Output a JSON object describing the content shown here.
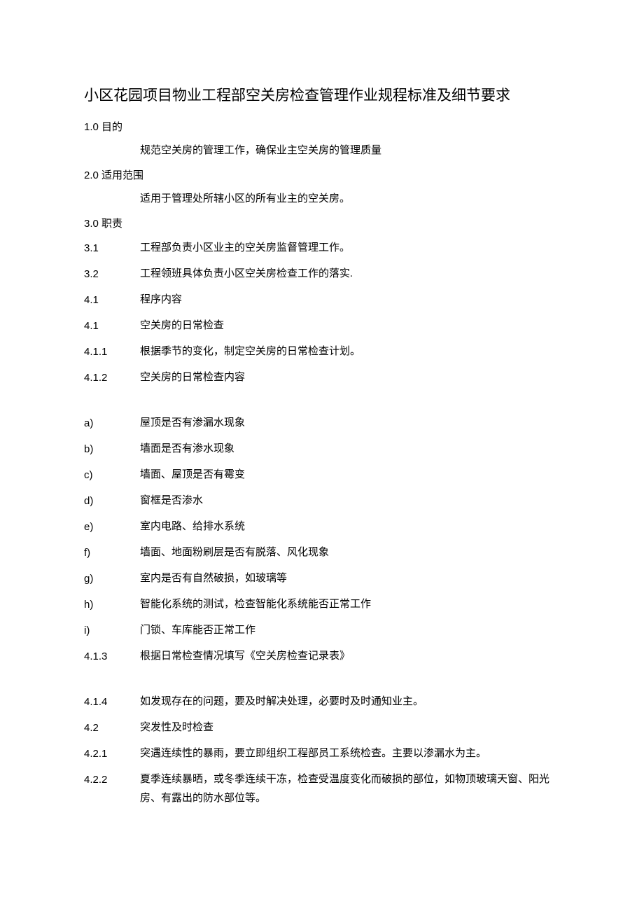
{
  "title": "小区花园项目物业工程部空关房检查管理作业规程标准及细节要求",
  "sections": {
    "s1": {
      "num": "1.0",
      "label": "目的"
    },
    "s2": {
      "num": "2.0",
      "label": "适用范围"
    },
    "s3": {
      "num": "3.0",
      "label": "职责"
    }
  },
  "line1": "规范空关房的管理工作，确保业主空关房的管理质量",
  "line2": "适用于管理处所辖小区的所有业主的空关房。",
  "items": {
    "i31": {
      "num": "3.1",
      "text": "工程部负责小区业主的空关房监督管理工作。"
    },
    "i32": {
      "num": "3.2",
      "text": "工程领班具体负责小区空关房检查工作的落实."
    },
    "i41a": {
      "num": "4.1",
      "text": "程序内容"
    },
    "i41b": {
      "num": "4.1",
      "text": "空关房的日常检查"
    },
    "i411": {
      "num": "4.1.1",
      "text": "根据季节的变化，制定空关房的日常检查计划。"
    },
    "i412": {
      "num": "4.1.2",
      "text": "空关房的日常检查内容"
    },
    "ia": {
      "num": "a)",
      "text": "屋顶是否有渗漏水现象"
    },
    "ib": {
      "num": "b)",
      "text": "墙面是否有渗水现象"
    },
    "ic": {
      "num": "c)",
      "text": "墙面、屋顶是否有霉变"
    },
    "id": {
      "num": "d)",
      "text": "窗框是否渗水"
    },
    "ie": {
      "num": "e)",
      "text": "室内电路、给排水系统"
    },
    "if": {
      "num": "f)",
      "text": "墙面、地面粉刷层是否有脱落、风化现象"
    },
    "ig": {
      "num": "g)",
      "text": "室内是否有自然破损，如玻璃等"
    },
    "ih": {
      "num": "h)",
      "text": "智能化系统的测试，检查智能化系统能否正常工作"
    },
    "ii": {
      "num": "i)",
      "text": "门锁、车库能否正常工作"
    },
    "i413": {
      "num": "4.1.3",
      "text": "根据日常检查情况填写《空关房检查记录表》"
    },
    "i414": {
      "num": "4.1.4",
      "text": "如发现存在的问题，要及时解决处理，必要时及时通知业主。"
    },
    "i42": {
      "num": "4.2",
      "text": "突发性及时检查"
    },
    "i421": {
      "num": "4.2.1",
      "text": "突遇连续性的暴雨，要立即组织工程部员工系统检查。主要以渗漏水为主。"
    },
    "i422": {
      "num": "4.2.2",
      "text": "夏季连续暴晒，或冬季连续干冻，检查受温度变化而破损的部位，如物顶玻璃天窗、阳光房、有露出的防水部位等。"
    }
  },
  "colors": {
    "background": "#ffffff",
    "text": "#000000"
  },
  "fonts": {
    "title_size": 21,
    "body_size": 15
  }
}
